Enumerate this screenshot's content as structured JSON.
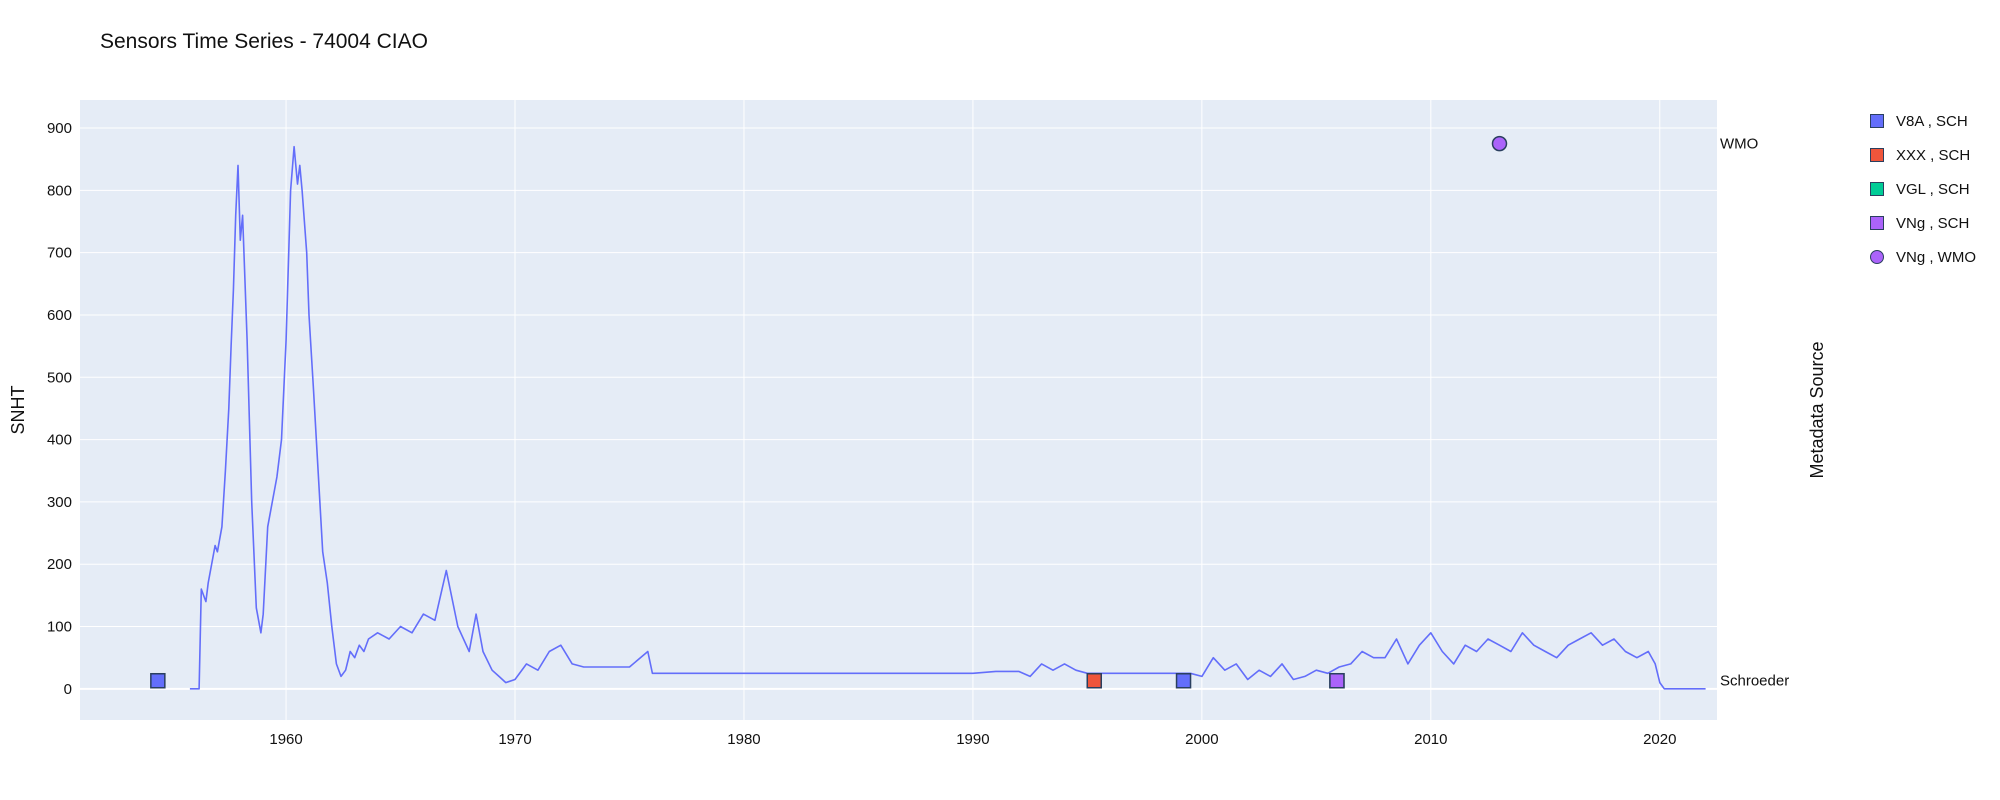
{
  "chart_data": {
    "type": "line",
    "title": "Sensors Time Series - 74004 CIAO",
    "ylabel": "SNHT",
    "y2label": "Metadata Source",
    "xlim": [
      1951,
      2022.5
    ],
    "ylim": [
      -50,
      945
    ],
    "x_ticks": [
      1960,
      1970,
      1980,
      1990,
      2000,
      2010,
      2020
    ],
    "y_ticks": [
      0,
      100,
      200,
      300,
      400,
      500,
      600,
      700,
      800,
      900
    ],
    "grid": true,
    "legend_position": "right",
    "line_color": "#636efa",
    "series": [
      {
        "type": "line",
        "x": [
          1955.8,
          1956.2,
          1956.3,
          1956.5,
          1956.6,
          1956.8,
          1956.9,
          1957.0,
          1957.2,
          1957.35,
          1957.5,
          1957.6,
          1957.7,
          1957.8,
          1957.9,
          1958.0,
          1958.1,
          1958.3,
          1958.5,
          1958.7,
          1958.9,
          1959.0,
          1959.2,
          1959.4,
          1959.6,
          1959.8,
          1960.0,
          1960.2,
          1960.35,
          1960.5,
          1960.6,
          1960.7,
          1960.9,
          1961.0,
          1961.2,
          1961.4,
          1961.6,
          1961.8,
          1962.0,
          1962.2,
          1962.4,
          1962.6,
          1962.8,
          1963.0,
          1963.2,
          1963.4,
          1963.6,
          1964.0,
          1964.5,
          1965.0,
          1965.5,
          1966.0,
          1966.5,
          1967.0,
          1967.5,
          1968.0,
          1968.3,
          1968.6,
          1969.0,
          1969.3,
          1969.6,
          1970.0,
          1970.5,
          1971.0,
          1971.5,
          1972.0,
          1972.5,
          1973.0,
          1973.3,
          1973.6,
          1974.0,
          1975.0,
          1975.8,
          1976.0,
          1976.3,
          1977.0,
          1980.0,
          1985.0,
          1990.0,
          1991.0,
          1992.0,
          1992.5,
          1993.0,
          1993.5,
          1994.0,
          1994.5,
          1995.0,
          1995.5,
          1996.0,
          1997.0,
          1998.0,
          1999.0,
          1999.5,
          2000.0,
          2000.5,
          2001.0,
          2001.5,
          2002.0,
          2002.5,
          2003.0,
          2003.5,
          2004.0,
          2004.5,
          2005.0,
          2005.5,
          2006.0,
          2006.5,
          2007.0,
          2007.5,
          2008.0,
          2008.5,
          2009.0,
          2009.5,
          2010.0,
          2010.5,
          2011.0,
          2011.5,
          2012.0,
          2012.5,
          2013.0,
          2013.5,
          2014.0,
          2014.5,
          2015.0,
          2015.5,
          2016.0,
          2016.5,
          2017.0,
          2017.5,
          2018.0,
          2018.5,
          2019.0,
          2019.5,
          2019.8,
          2020.0,
          2020.2,
          2021.0,
          2022.0
        ],
        "y": [
          0,
          0,
          160,
          140,
          170,
          210,
          230,
          220,
          260,
          350,
          450,
          550,
          640,
          760,
          840,
          720,
          760,
          560,
          300,
          130,
          90,
          120,
          260,
          300,
          340,
          400,
          560,
          800,
          870,
          810,
          840,
          800,
          700,
          600,
          480,
          350,
          220,
          170,
          100,
          40,
          20,
          30,
          60,
          50,
          70,
          60,
          80,
          90,
          80,
          100,
          90,
          120,
          110,
          190,
          100,
          60,
          120,
          60,
          30,
          20,
          10,
          15,
          40,
          30,
          60,
          70,
          40,
          35,
          35,
          35,
          35,
          35,
          60,
          25,
          25,
          25,
          25,
          25,
          25,
          28,
          28,
          20,
          40,
          30,
          40,
          30,
          25,
          25,
          25,
          25,
          25,
          25,
          25,
          20,
          50,
          30,
          40,
          15,
          30,
          20,
          40,
          15,
          20,
          30,
          25,
          35,
          40,
          60,
          50,
          50,
          80,
          40,
          70,
          90,
          60,
          40,
          70,
          60,
          80,
          70,
          60,
          90,
          70,
          60,
          50,
          70,
          80,
          90,
          70,
          80,
          60,
          50,
          60,
          40,
          10,
          0,
          0,
          0
        ]
      },
      {
        "name": "V8A , SCH",
        "type": "marker",
        "symbol": "square",
        "color": "#636efa",
        "x": [
          1954.4,
          1999.2
        ],
        "y": [
          13,
          13
        ]
      },
      {
        "name": "XXX , SCH",
        "type": "marker",
        "symbol": "square",
        "color": "#ef553b",
        "x": [
          1995.3
        ],
        "y": [
          13
        ]
      },
      {
        "name": "VGL , SCH",
        "type": "marker",
        "symbol": "square",
        "color": "#00cc96",
        "x": [
          2005.9
        ],
        "y": [
          13
        ]
      },
      {
        "name": "VNg , SCH",
        "type": "marker",
        "symbol": "square",
        "color": "#ab63fa",
        "x": [
          2005.9
        ],
        "y": [
          13
        ]
      },
      {
        "name": "VNg , WMO",
        "type": "marker",
        "symbol": "circle",
        "color": "#ab63fa",
        "x": [
          2013.0
        ],
        "y": [
          875
        ]
      }
    ],
    "right_labels": [
      {
        "text": "WMO",
        "y": 875
      },
      {
        "text": "Schroeder",
        "y": 13
      }
    ]
  }
}
